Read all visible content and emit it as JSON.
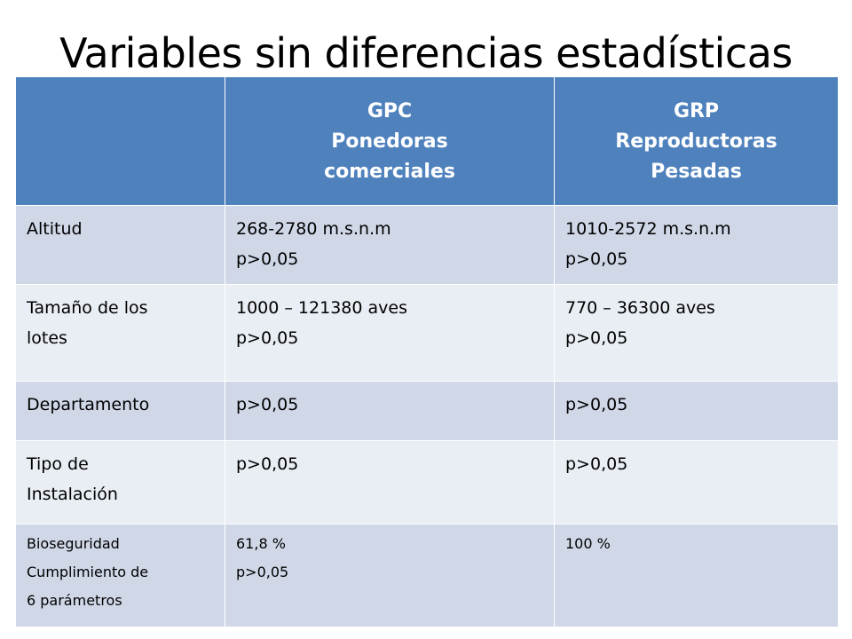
{
  "slide": {
    "title": "Variables sin diferencias estadísticas"
  },
  "table": {
    "header": {
      "col0": "",
      "col1": [
        "GPC",
        "Ponedoras",
        "comerciales"
      ],
      "col2": [
        "GRP",
        "Reproductoras",
        "Pesadas"
      ]
    },
    "rows": [
      {
        "label": [
          "Altitud"
        ],
        "gpc": [
          "268-2780 m.s.n.m",
          "p>0,05"
        ],
        "grp": [
          "1010-2572 m.s.n.m",
          "p>0,05"
        ]
      },
      {
        "label": [
          "Tamaño de los",
          "lotes"
        ],
        "gpc": [
          "1000 – 121380 aves",
          "p>0,05"
        ],
        "grp": [
          "770 – 36300 aves",
          "p>0,05"
        ]
      },
      {
        "label": [
          "Departamento"
        ],
        "gpc": [
          "p>0,05"
        ],
        "grp": [
          "p>0,05"
        ]
      },
      {
        "label": [
          "Tipo de",
          "Instalación"
        ],
        "gpc": [
          "p>0,05"
        ],
        "grp": [
          "p>0,05"
        ]
      },
      {
        "label": [
          "Bioseguridad",
          "Cumplimiento de",
          "6 parámetros"
        ],
        "gpc": [
          "61,8 %",
          "p>0,05"
        ],
        "grp": [
          "100 %"
        ]
      }
    ]
  },
  "colors": {
    "header_bg": "#4f81bd",
    "row_dark": "#d0d8e8",
    "row_light": "#e9edf4"
  }
}
